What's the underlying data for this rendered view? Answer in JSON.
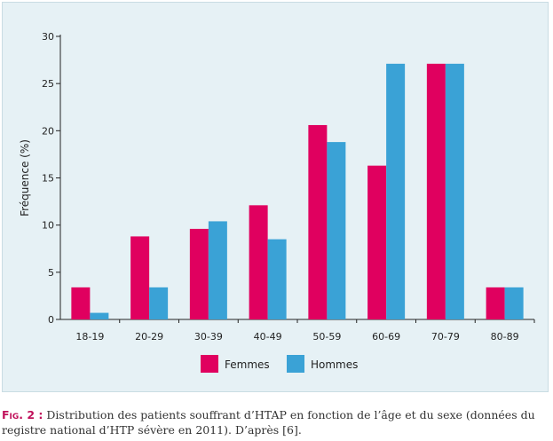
{
  "chart_data": {
    "type": "bar",
    "categories": [
      "18-19",
      "20-29",
      "30-39",
      "40-49",
      "50-59",
      "60-69",
      "70-79",
      "80-89"
    ],
    "series": [
      {
        "name": "Femmes",
        "values": [
          3.4,
          8.8,
          9.6,
          12.1,
          20.6,
          16.3,
          27.1,
          3.4
        ],
        "color": "#e0005f"
      },
      {
        "name": "Hommes",
        "values": [
          0.7,
          3.4,
          10.4,
          8.5,
          18.8,
          27.1,
          27.1,
          3.4
        ],
        "color": "#3aa2d6"
      }
    ],
    "ylabel": "Fréquence (%)",
    "xlabel": "",
    "ylim": [
      0,
      30
    ],
    "yticks": [
      0,
      5,
      10,
      15,
      20,
      25,
      30
    ],
    "legend_position": "bottom-center",
    "grid": false
  },
  "caption": {
    "label": "Fig. 2 :",
    "text": " Distribution des patients souffrant d’HTAP en fonction de l’âge et du sexe (données du registre national d’HTP sévère en 2011). D’après [6]."
  }
}
